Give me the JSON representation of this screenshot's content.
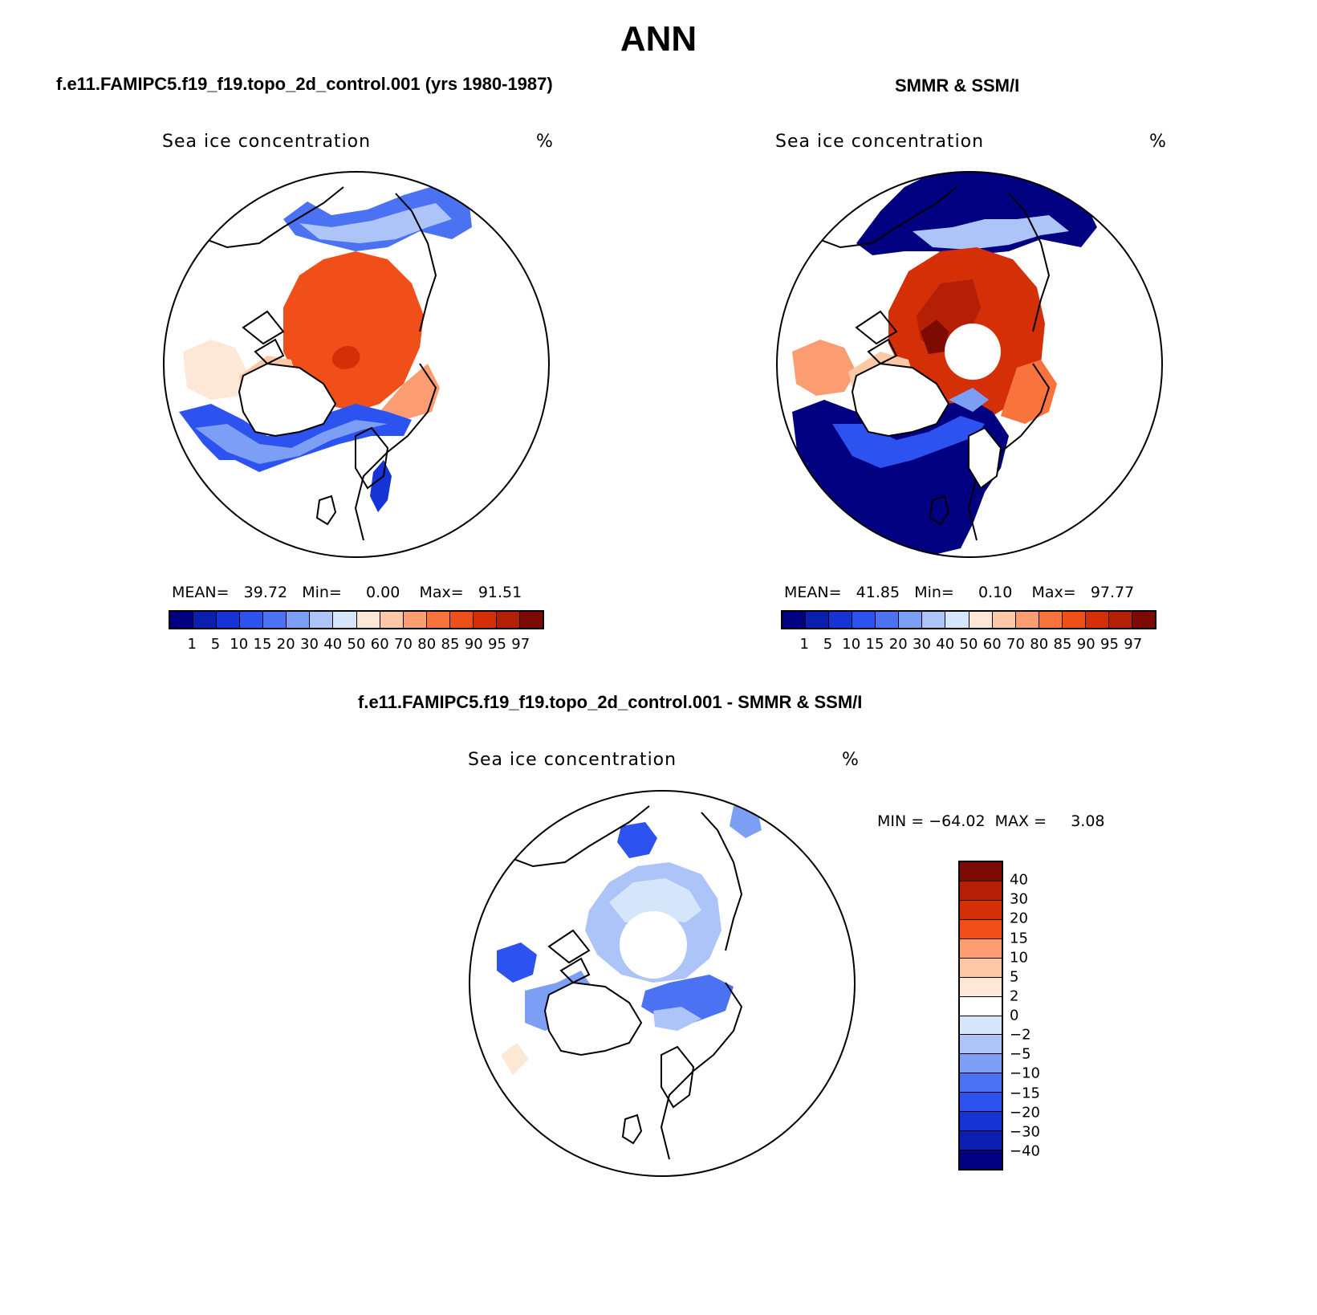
{
  "title": "ANN",
  "colors": {
    "seq": [
      "#000080",
      "#0a1fb0",
      "#1633d6",
      "#2c52f0",
      "#4a72f2",
      "#7c9ef4",
      "#adc4f8",
      "#d6e6fa",
      "#fde8d8",
      "#fcc8a6",
      "#fb9d70",
      "#f9733c",
      "#f04f1a",
      "#d52f08",
      "#b51f06",
      "#7d0a03"
    ],
    "div": [
      "#7d0a03",
      "#b51f06",
      "#d52f08",
      "#f04f1a",
      "#fb9d70",
      "#fcc8a6",
      "#fde8d8",
      "#ffffff",
      "#d6e6fa",
      "#adc4f8",
      "#7c9ef4",
      "#4a72f2",
      "#2c52f0",
      "#1633d6",
      "#0a1fb0",
      "#000080"
    ]
  },
  "panel1": {
    "case_title": "f.e11.FAMIPC5.f19_f19.topo_2d_control.001 (yrs 1980-1987)",
    "var_label": "Sea ice concentration",
    "units": "%",
    "stats": {
      "mean_label": "MEAN=",
      "mean": "39.72",
      "min_label": "Min=",
      "min": "0.00",
      "max_label": "Max=",
      "max": "91.51"
    },
    "ticks": [
      "1",
      "5",
      "10",
      "15",
      "20",
      "30",
      "40",
      "50",
      "60",
      "70",
      "80",
      "85",
      "90",
      "95",
      "97"
    ]
  },
  "panel2": {
    "case_title": "SMMR & SSM/I",
    "var_label": "Sea ice concentration",
    "units": "%",
    "stats": {
      "mean_label": "MEAN=",
      "mean": "41.85",
      "min_label": "Min=",
      "min": "0.10",
      "max_label": "Max=",
      "max": "97.77"
    },
    "ticks": [
      "1",
      "5",
      "10",
      "15",
      "20",
      "30",
      "40",
      "50",
      "60",
      "70",
      "80",
      "85",
      "90",
      "95",
      "97"
    ]
  },
  "panel3": {
    "case_title": "f.e11.FAMIPC5.f19_f19.topo_2d_control.001 - SMMR & SSM/I",
    "var_label": "Sea ice concentration",
    "units": "%",
    "stats": {
      "min_label": "MIN =",
      "min": "−64.02",
      "max_label": "MAX =",
      "max": "3.08"
    },
    "ticks": [
      "40",
      "30",
      "20",
      "15",
      "10",
      "5",
      "2",
      "0",
      "−2",
      "−5",
      "−10",
      "−15",
      "−20",
      "−30",
      "−40"
    ]
  }
}
